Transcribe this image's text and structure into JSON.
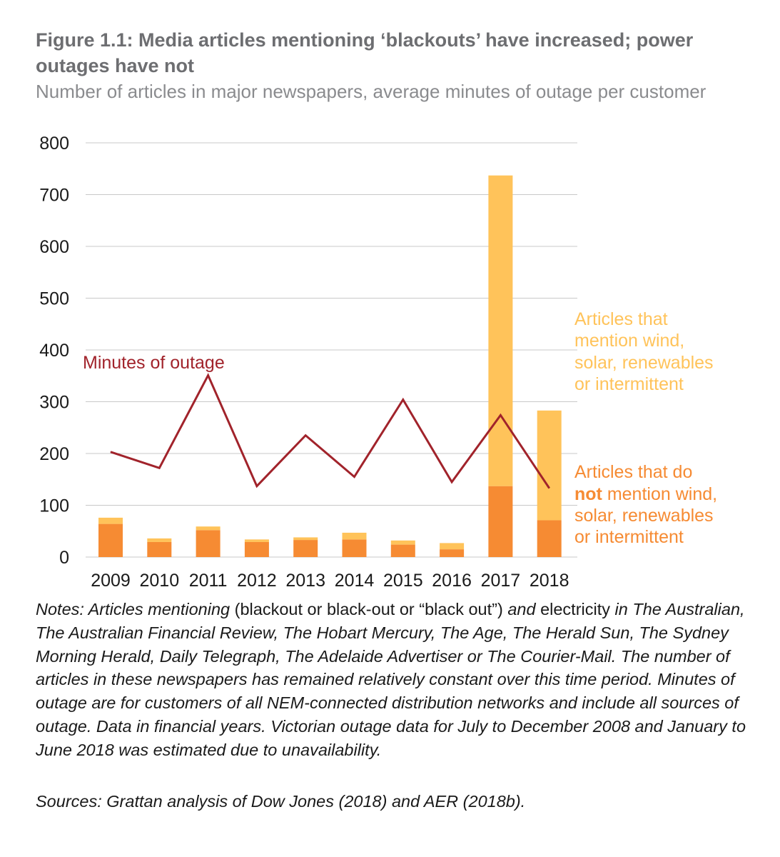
{
  "figure": {
    "title": "Figure 1.1: Media articles mentioning ‘blackouts’ have increased; power outages have not",
    "subtitle": "Number of articles in major newspapers, average minutes of outage per customer"
  },
  "chart_data": {
    "type": "bar",
    "categories": [
      "2009",
      "2010",
      "2011",
      "2012",
      "2013",
      "2014",
      "2015",
      "2016",
      "2017",
      "2018"
    ],
    "ylim": [
      0,
      800
    ],
    "yticks": [
      "0",
      "100",
      "200",
      "300",
      "400",
      "500",
      "600",
      "700",
      "800"
    ],
    "grid": true,
    "series": [
      {
        "name": "Articles that do not mention wind, solar, renewables or intermittent",
        "kind": "bar-stack-bottom",
        "color": "#f68b33",
        "values": [
          64,
          29,
          52,
          29,
          33,
          34,
          24,
          15,
          137,
          71
        ]
      },
      {
        "name": "Articles that mention wind, solar, renewables or intermittent",
        "kind": "bar-stack-top",
        "color": "#ffc35a",
        "values": [
          12,
          7,
          7,
          5,
          5,
          13,
          8,
          12,
          600,
          212
        ]
      },
      {
        "name": "Minutes of outage",
        "kind": "line",
        "color": "#a1232b",
        "values": [
          203,
          172,
          351,
          137,
          235,
          155,
          304,
          145,
          274,
          133
        ]
      }
    ],
    "labels": {
      "line": "Minutes of outage",
      "renewable": [
        "Articles that",
        "mention wind,",
        "solar, renewables",
        "or intermittent"
      ],
      "non_renewable_line1": "Articles that do",
      "non_renewable_bold": "not",
      "non_renewable_line2_rest": " mention wind,",
      "non_renewable_line3": "solar, renewables",
      "non_renewable_line4": "or intermittent"
    },
    "colors": {
      "line_label": "#a1232b",
      "renewable_label": "#ffc35a",
      "non_renewable_label": "#f68b33",
      "grid": "#c8c8c8",
      "axis_text": "#1a1a1a"
    }
  },
  "notes": {
    "p1": "Notes: Articles mentioning",
    "p2": " (blackout or black-out or “black out”) ",
    "p3": "and",
    "p4": " electricity ",
    "p5": "in The Australian, The Australian Financial Review, The Hobart Mercury, The Age, The Herald Sun, The Sydney Morning Herald, Daily Telegraph, The Adelaide Advertiser or The Courier-Mail. The number of articles in these newspapers has remained relatively constant over this time period. Minutes of outage are for customers of all NEM-connected distribution networks and include all sources of outage. Data in financial years. Victorian outage data for July to December 2008 and January to June 2018 was estimated due to unavailability."
  },
  "sources": "Sources: Grattan analysis of Dow Jones (2018) and AER (2018b)."
}
